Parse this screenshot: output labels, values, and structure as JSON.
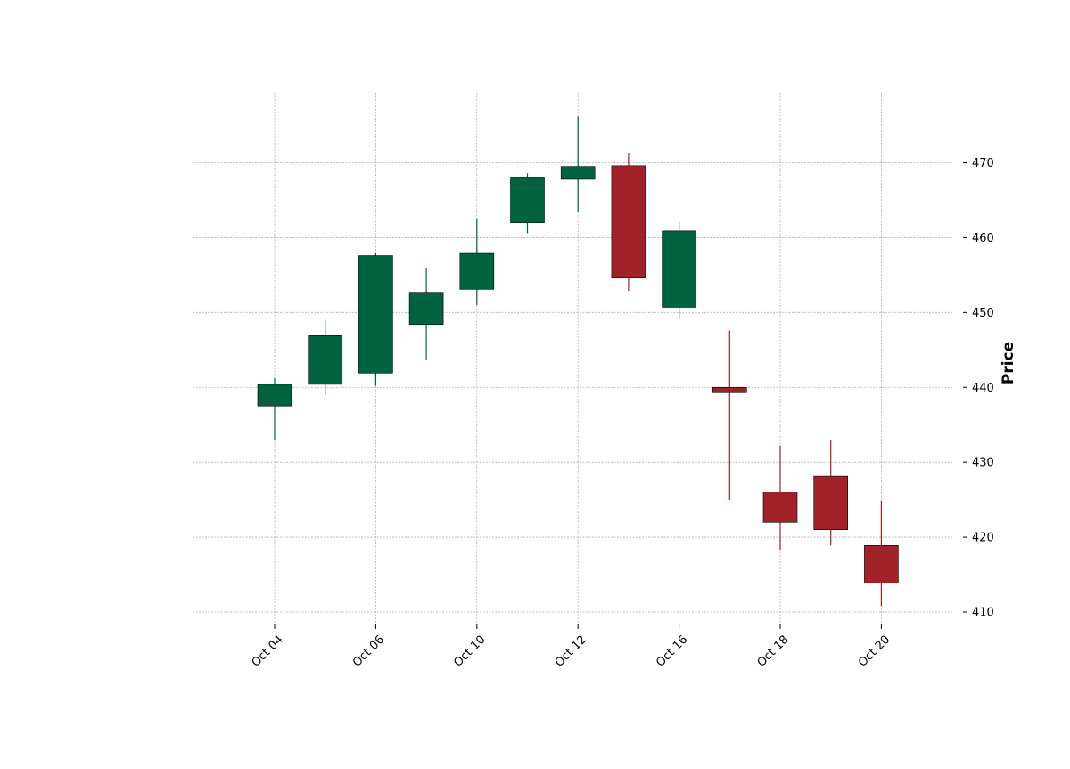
{
  "chart_data": {
    "type": "candlestick",
    "title": "",
    "xlabel": "",
    "ylabel": "Price",
    "ylim": [
      408,
      479
    ],
    "yticks": [
      410,
      420,
      430,
      440,
      450,
      460,
      470
    ],
    "grid": true,
    "colors": {
      "up": "#006340",
      "down": "#a02128"
    },
    "x_tick_labels": [
      "Oct 04",
      "Oct 06",
      "Oct 10",
      "Oct 12",
      "Oct 16",
      "Oct 18",
      "Oct 20"
    ],
    "x_tick_candle_index": [
      0,
      2,
      4,
      6,
      8,
      10,
      12
    ],
    "candles": [
      {
        "open": 437.5,
        "high": 441.2,
        "low": 433.0,
        "close": 440.4
      },
      {
        "open": 440.4,
        "high": 449.0,
        "low": 439.0,
        "close": 446.9
      },
      {
        "open": 441.9,
        "high": 457.9,
        "low": 440.2,
        "close": 457.6
      },
      {
        "open": 448.4,
        "high": 456.0,
        "low": 443.7,
        "close": 452.7
      },
      {
        "open": 453.1,
        "high": 462.6,
        "low": 451.0,
        "close": 457.9
      },
      {
        "open": 462.0,
        "high": 468.6,
        "low": 460.6,
        "close": 468.1
      },
      {
        "open": 467.8,
        "high": 476.2,
        "low": 463.4,
        "close": 469.5
      },
      {
        "open": 469.6,
        "high": 471.3,
        "low": 452.9,
        "close": 454.6
      },
      {
        "open": 450.7,
        "high": 462.1,
        "low": 449.1,
        "close": 460.9
      },
      {
        "open": 440.0,
        "high": 447.6,
        "low": 425.0,
        "close": 439.4
      },
      {
        "open": 426.0,
        "high": 432.2,
        "low": 418.2,
        "close": 422.0
      },
      {
        "open": 428.1,
        "high": 433.0,
        "low": 418.9,
        "close": 421.0
      },
      {
        "open": 418.9,
        "high": 424.8,
        "low": 410.8,
        "close": 413.9
      }
    ]
  }
}
